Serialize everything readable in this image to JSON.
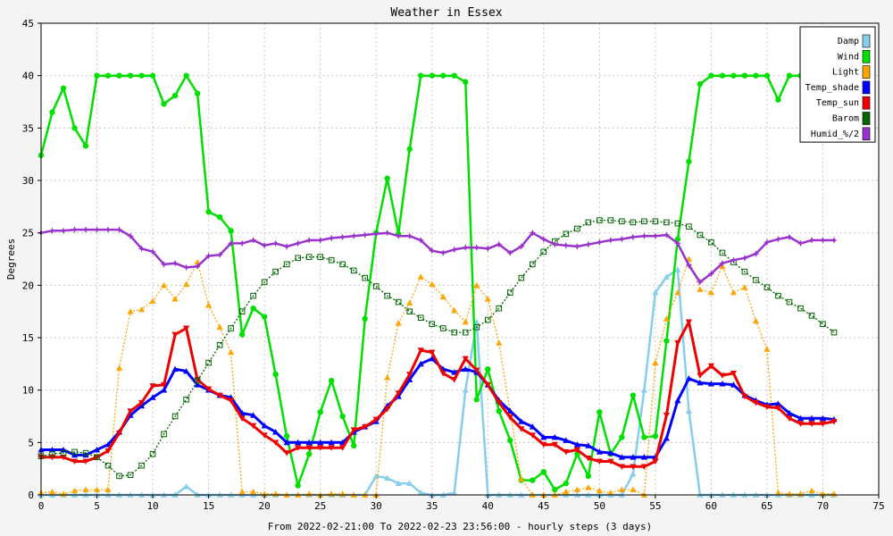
{
  "chart_data": {
    "type": "line",
    "title": "Weather in Essex",
    "xlabel": "From 2022-02-21:00 To 2022-02-23 23:56:00 - hourly steps (3 days)",
    "ylabel": "Degrees",
    "xlim": [
      0,
      75
    ],
    "ylim": [
      0,
      45
    ],
    "xticks": [
      "0",
      "5",
      "10",
      "15",
      "20",
      "25",
      "30",
      "35",
      "40",
      "45",
      "50",
      "55",
      "60",
      "65",
      "70",
      "75"
    ],
    "yticks": [
      "0",
      "5",
      "10",
      "15",
      "20",
      "25",
      "30",
      "35",
      "40",
      "45"
    ],
    "grid": true,
    "legend_position": "top-right",
    "series": [
      {
        "name": "Damp",
        "color": "#87ceeb",
        "width": 2.5,
        "dash": "",
        "marker": "tri",
        "values": [
          0,
          0,
          0,
          0,
          0,
          0,
          0,
          0,
          0,
          0,
          0,
          0,
          0,
          0.8,
          0,
          0,
          0,
          0,
          0,
          0,
          0,
          0,
          0,
          0,
          0,
          0,
          0,
          0,
          0,
          0,
          1.8,
          1.6,
          1.1,
          1.1,
          0.2,
          0,
          0,
          0.2,
          10,
          16.5,
          0,
          0,
          0,
          0,
          0,
          0,
          0,
          0,
          0,
          0,
          0,
          0,
          0,
          2,
          10,
          19.3,
          20.8,
          21.5,
          8,
          0,
          0,
          0,
          0,
          0,
          0,
          0,
          0,
          0,
          0,
          0,
          0,
          0
        ]
      },
      {
        "name": "Wind",
        "color": "#00e000",
        "width": 2.5,
        "dash": "",
        "marker": "circle",
        "values": [
          32.4,
          36.5,
          38.8,
          35,
          33.3,
          40,
          40,
          40,
          40,
          40,
          40,
          37.3,
          38.1,
          40,
          38.3,
          27,
          26.5,
          25.2,
          15.3,
          17.8,
          17,
          11.5,
          5.6,
          0.9,
          3.9,
          7.9,
          10.9,
          7.5,
          4.7,
          16.8,
          25,
          30.2,
          24.9,
          33,
          40,
          40,
          40,
          40,
          39.4,
          9.1,
          12,
          8,
          5.2,
          1.4,
          1.4,
          2.2,
          0.5,
          1.1,
          3.9,
          1.8,
          7.9,
          3.9,
          5.5,
          9.5,
          5.5,
          5.6,
          14.7,
          24.4,
          31.8,
          39.2,
          40,
          40,
          40,
          40,
          40,
          40,
          37.7,
          40,
          40,
          40,
          40,
          40
        ]
      },
      {
        "name": "Light",
        "color": "#ffa500",
        "width": 1.3,
        "dash": "2,2",
        "marker": "tri",
        "values": [
          0.2,
          0.3,
          0.1,
          0.4,
          0.5,
          0.5,
          0.5,
          12.1,
          17.5,
          17.7,
          18.5,
          20,
          18.7,
          20.1,
          22.2,
          18.1,
          16,
          13.6,
          0.3,
          0.3,
          0.1,
          0.1,
          0,
          0,
          0.1,
          0,
          0.1,
          0.1,
          0,
          0,
          0,
          11.2,
          16.4,
          18.3,
          20.8,
          20.1,
          18.9,
          17.6,
          16.5,
          20,
          18.7,
          14.5,
          7.9,
          1.5,
          0,
          0,
          0,
          0.3,
          0.5,
          0.7,
          0.4,
          0.2,
          0.5,
          0.5,
          0,
          12.6,
          16.8,
          19.3,
          22.5,
          19.6,
          19.3,
          21.8,
          19.3,
          19.8,
          16.6,
          13.9,
          0.2,
          0.1,
          0.1,
          0.4,
          0.1,
          0.1
        ]
      },
      {
        "name": "Temp_shade",
        "color": "#0000ff",
        "width": 3,
        "dash": "",
        "marker": "tri",
        "values": [
          4.3,
          4.3,
          4.3,
          3.8,
          3.8,
          4.3,
          4.8,
          6,
          7.6,
          8.5,
          9.3,
          10,
          12,
          11.8,
          10.5,
          10,
          9.5,
          9.3,
          7.8,
          7.6,
          6.6,
          6,
          5,
          5,
          5,
          5,
          5,
          5,
          6,
          6.5,
          7,
          8.5,
          9.4,
          11,
          12.5,
          13,
          12,
          11.7,
          12,
          11.7,
          10.5,
          9,
          8,
          7,
          6.5,
          5.5,
          5.5,
          5.2,
          4.8,
          4.7,
          4.1,
          4,
          3.6,
          3.6,
          3.6,
          3.6,
          5.4,
          9,
          11.1,
          10.7,
          10.6,
          10.6,
          10.5,
          9.5,
          9,
          8.6,
          8.7,
          7.8,
          7.3,
          7.3,
          7.3,
          7.2
        ]
      },
      {
        "name": "Temp_sun",
        "color": "#ee0000",
        "width": 3,
        "dash": "",
        "marker": "tri_down",
        "values": [
          3.6,
          3.6,
          3.6,
          3.2,
          3.2,
          3.6,
          4.2,
          5.9,
          8,
          8.8,
          10.4,
          10.5,
          15.3,
          15.9,
          11,
          10.1,
          9.5,
          9,
          7.3,
          6.6,
          5.7,
          5,
          4,
          4.5,
          4.5,
          4.5,
          4.5,
          4.5,
          6.2,
          6.5,
          7.2,
          8.2,
          9.7,
          11.5,
          13.8,
          13.6,
          11.6,
          11,
          13,
          11.9,
          10.5,
          8.8,
          7.4,
          6.3,
          5.7,
          4.8,
          4.8,
          4.1,
          4.3,
          3.5,
          3.2,
          3.2,
          2.7,
          2.7,
          2.7,
          3.2,
          7.6,
          14.5,
          16.5,
          11.4,
          12.3,
          11.4,
          11.6,
          9.4,
          8.8,
          8.4,
          8.3,
          7.3,
          6.8,
          6.8,
          6.8,
          7
        ]
      },
      {
        "name": "Barom",
        "color": "#006400",
        "width": 1.3,
        "dash": "2,2",
        "marker": "square",
        "values": [
          3.7,
          3.9,
          4,
          4.1,
          4,
          3.6,
          2.8,
          1.8,
          1.9,
          2.8,
          3.9,
          5.8,
          7.5,
          9.1,
          10.9,
          12.6,
          14.3,
          15.9,
          17.5,
          19,
          20.3,
          21.3,
          22,
          22.6,
          22.7,
          22.7,
          22.4,
          22,
          21.4,
          20.7,
          19.9,
          19,
          18.4,
          17.5,
          16.9,
          16.3,
          15.9,
          15.5,
          15.5,
          16,
          16.7,
          17.8,
          19.3,
          20.7,
          22,
          23.2,
          24.2,
          24.9,
          25.4,
          26,
          26.2,
          26.2,
          26.1,
          26,
          26.1,
          26.1,
          26,
          25.9,
          25.6,
          24.8,
          24.1,
          23.1,
          22.2,
          21.3,
          20.5,
          19.8,
          19,
          18.4,
          17.8,
          17.1,
          16.3,
          15.5
        ]
      },
      {
        "name": "Humid_%/2",
        "color": "#9a32cd",
        "width": 2.5,
        "dash": "",
        "marker": "star",
        "values": [
          25,
          25.2,
          25.2,
          25.3,
          25.3,
          25.3,
          25.3,
          25.3,
          24.7,
          23.5,
          23.2,
          22,
          22.1,
          21.7,
          21.8,
          22.8,
          22.9,
          24,
          24,
          24.3,
          23.8,
          24,
          23.7,
          24,
          24.3,
          24.3,
          24.5,
          24.6,
          24.7,
          24.8,
          24.9,
          25,
          24.7,
          24.7,
          24.3,
          23.3,
          23.1,
          23.4,
          23.6,
          23.6,
          23.5,
          23.9,
          23.1,
          23.7,
          25,
          24.4,
          23.9,
          23.8,
          23.7,
          23.9,
          24.1,
          24.3,
          24.4,
          24.6,
          24.7,
          24.7,
          24.8,
          24,
          21.9,
          20.3,
          21.1,
          22.1,
          22.4,
          22.6,
          23,
          24.1,
          24.4,
          24.6,
          24,
          24.3,
          24.3,
          24.3
        ]
      }
    ]
  }
}
